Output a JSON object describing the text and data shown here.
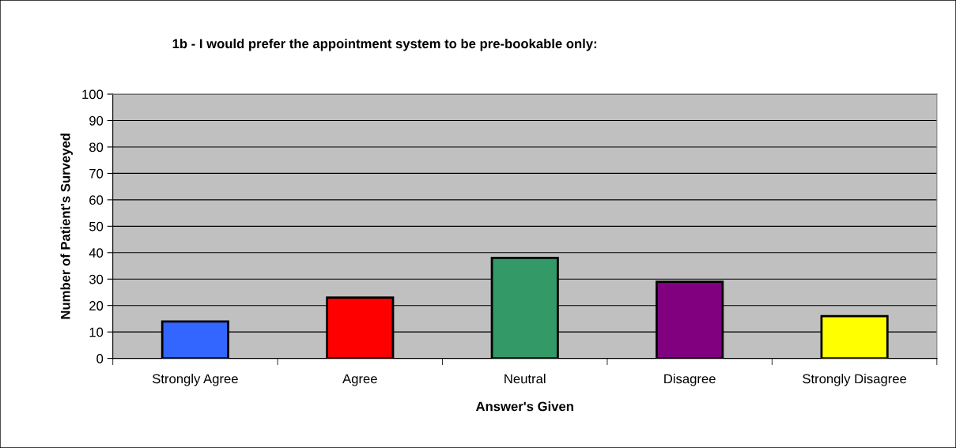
{
  "chart_data": {
    "type": "bar",
    "title": "1b - I would prefer the appointment system to be pre-bookable only:",
    "xlabel": "Answer's Given",
    "ylabel": "Number of Patient's Surveyed",
    "categories": [
      "Strongly Agree",
      "Agree",
      "Neutral",
      "Disagree",
      "Strongly Disagree"
    ],
    "values": [
      14,
      23,
      38,
      29,
      16
    ],
    "colors": [
      "#3366ff",
      "#ff0000",
      "#339966",
      "#800080",
      "#ffff00"
    ],
    "ylim": [
      0,
      100
    ],
    "yticks": [
      0,
      10,
      20,
      30,
      40,
      50,
      60,
      70,
      80,
      90,
      100
    ],
    "grid": "y",
    "legend": false
  }
}
